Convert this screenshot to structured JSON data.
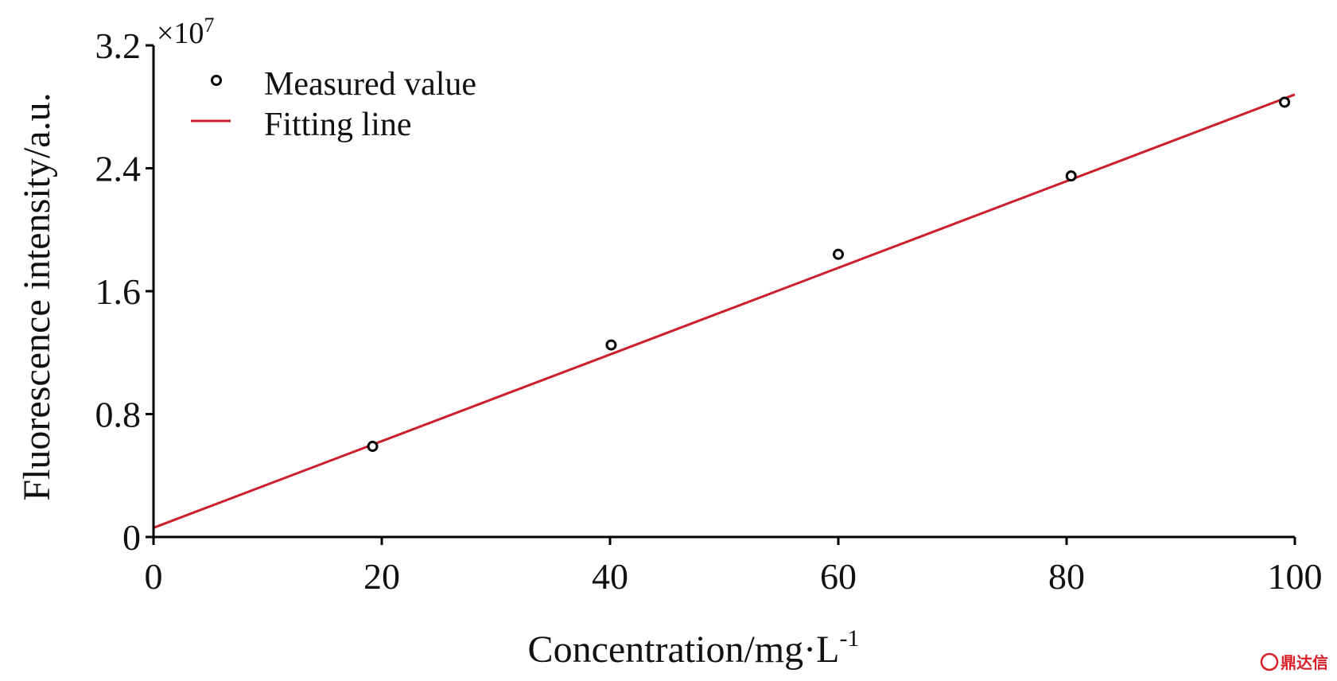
{
  "chart_data": {
    "type": "scatter",
    "title": "",
    "xlabel": "Concentration/mg·L",
    "xlabel_superscript": "-1",
    "ylabel": "Fluorescence intensity/a.u.",
    "y_multiplier": "×10",
    "y_multiplier_exponent": "7",
    "xlim": [
      0,
      100
    ],
    "ylim": [
      0,
      3.2
    ],
    "x_ticks": [
      "0",
      "20",
      "40",
      "60",
      "80",
      "100"
    ],
    "y_ticks": [
      "0",
      "0.8",
      "1.6",
      "2.4",
      "3.2"
    ],
    "x_tick_values": [
      0,
      20,
      40,
      60,
      80,
      100
    ],
    "y_tick_values": [
      0,
      0.8,
      1.6,
      2.4,
      3.2
    ],
    "grid": false,
    "legend_position": "top-left",
    "series": [
      {
        "name": "Measured value",
        "kind": "scatter",
        "marker": "open-circle",
        "color": "#000000",
        "x": [
          19.2,
          40.1,
          60.0,
          80.4,
          99.1
        ],
        "y": [
          0.59,
          1.25,
          1.84,
          2.35,
          2.83
        ]
      },
      {
        "name": "Fitting line",
        "kind": "line",
        "color": "#cc1f2e",
        "x": [
          0,
          100
        ],
        "y": [
          0.06,
          2.88
        ]
      }
    ]
  },
  "watermark": {
    "text": "鼎达信",
    "color": "#d61f26"
  }
}
